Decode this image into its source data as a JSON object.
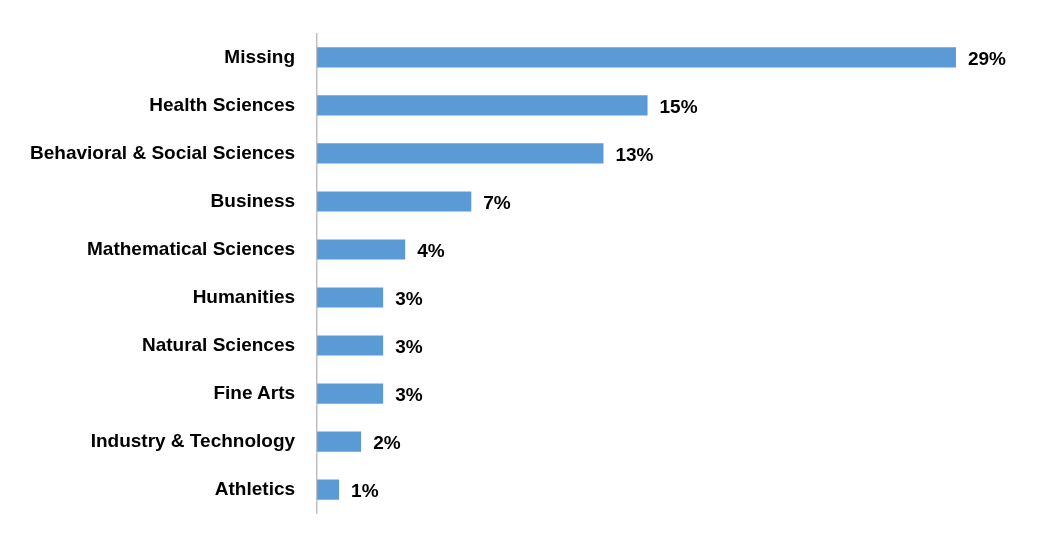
{
  "chart_data": {
    "type": "bar",
    "orientation": "horizontal",
    "categories": [
      "Missing",
      "Health Sciences",
      "Behavioral & Social Sciences",
      "Business",
      "Mathematical Sciences",
      "Humanities",
      "Natural Sciences",
      "Fine Arts",
      "Industry & Technology",
      "Athletics"
    ],
    "values": [
      29,
      15,
      13,
      7,
      4,
      3,
      3,
      3,
      2,
      1
    ],
    "value_labels": [
      "29%",
      "15%",
      "13%",
      "7%",
      "4%",
      "3%",
      "3%",
      "3%",
      "2%",
      "1%"
    ],
    "color": "#5b9bd5",
    "grid": false,
    "legend": false
  }
}
